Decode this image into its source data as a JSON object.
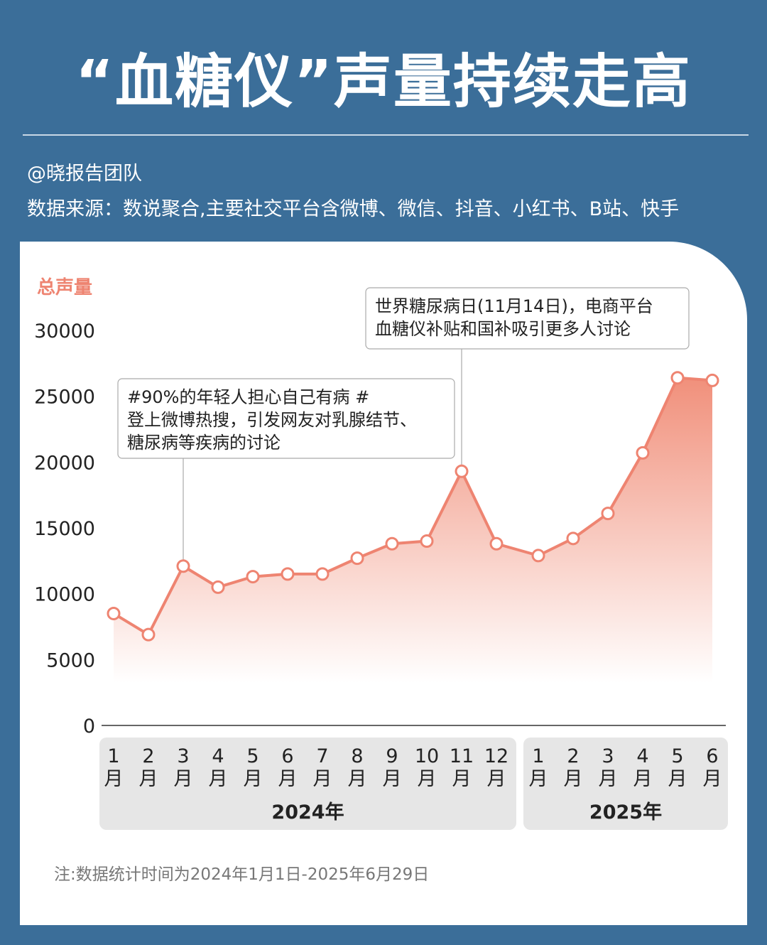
{
  "header": {
    "title": "“血糖仪”声量持续走高",
    "author": "@晓报告团队",
    "source": "数据来源：数说聚合,主要社交平台含微博、微信、抖音、小红书、B站、快手"
  },
  "footnote": "注:数据统计时间为2024年1月1日-2025年6月29日",
  "colors": {
    "background": "#3b6e99",
    "line": "#ee8471",
    "fill": "#f08a74",
    "ylabel": "#ee8471",
    "year_box": "#e6e6e6"
  },
  "chart_data": {
    "type": "area",
    "ylabel": "总声量",
    "ylim": [
      0,
      30000
    ],
    "yticks": [
      "0",
      "5000",
      "10000",
      "15000",
      "20000",
      "25000",
      "30000"
    ],
    "groups": [
      {
        "year": "2024年",
        "months": [
          "1\n月",
          "2\n月",
          "3\n月",
          "4\n月",
          "5\n月",
          "6\n月",
          "7\n月",
          "8\n月",
          "9\n月",
          "10\n月",
          "11\n月",
          "12\n月"
        ]
      },
      {
        "year": "2025年",
        "months": [
          "1\n月",
          "2\n月",
          "3\n月",
          "4\n月",
          "5\n月",
          "6\n月"
        ]
      }
    ],
    "values": [
      8500,
      6900,
      12100,
      10500,
      11300,
      11500,
      11500,
      12700,
      13800,
      14000,
      19300,
      13800,
      12900,
      14200,
      16100,
      20700,
      26400,
      26200
    ],
    "annotations": [
      {
        "point_index": 2,
        "lines": [
          "#90%的年轻人担心自己有病 #",
          "登上微博热搜，引发网友对乳腺结节、",
          "糖尿病等疾病的讨论"
        ]
      },
      {
        "point_index": 10,
        "lines": [
          "世界糖尿病日(11月14日)，电商平台",
          "血糖仪补贴和国补吸引更多人讨论"
        ]
      }
    ]
  }
}
